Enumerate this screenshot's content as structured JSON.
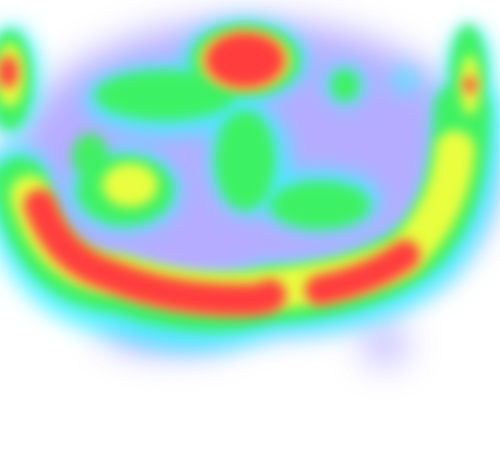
{
  "heatmap": {
    "background": "#ffffff",
    "colors": {
      "blue": "#5b4dff",
      "cyan": "#3ef2ff",
      "green": "#3ef25b",
      "yellow": "#f2ff3e",
      "red": "#ff3e3e"
    }
  }
}
